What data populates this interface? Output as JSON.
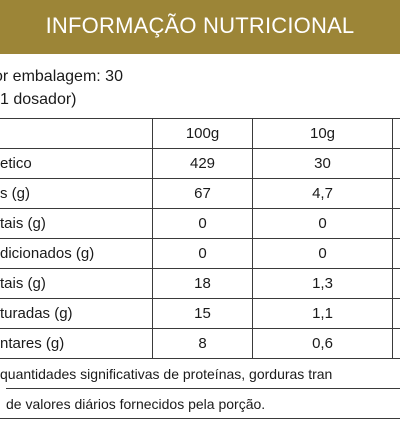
{
  "header": {
    "title": "INFORMAÇÃO NUTRICIONAL"
  },
  "intro": {
    "line1": "or embalagem: 30",
    "line2": "1 dosador)"
  },
  "colors": {
    "header_bg": "#9c8537",
    "header_text": "#ffffff"
  },
  "table": {
    "columns": [
      "",
      "100g",
      "10g"
    ],
    "rows": [
      {
        "label": "etico",
        "v100": "429",
        "v10": "30"
      },
      {
        "label": "s (g)",
        "v100": "67",
        "v10": "4,7"
      },
      {
        "label": "tais (g)",
        "v100": "0",
        "v10": "0"
      },
      {
        "label": "dicionados (g)",
        "v100": "0",
        "v10": "0"
      },
      {
        "label": "tais (g)",
        "v100": "18",
        "v10": "1,3"
      },
      {
        "label": "turadas (g)",
        "v100": "15",
        "v10": "1,1"
      },
      {
        "label": "ntares (g)",
        "v100": "8",
        "v10": "0,6"
      }
    ]
  },
  "footnotes": {
    "line1": "quantidades significativas de proteínas, gorduras tran",
    "line2": "de valores diários fornecidos pela porção."
  }
}
